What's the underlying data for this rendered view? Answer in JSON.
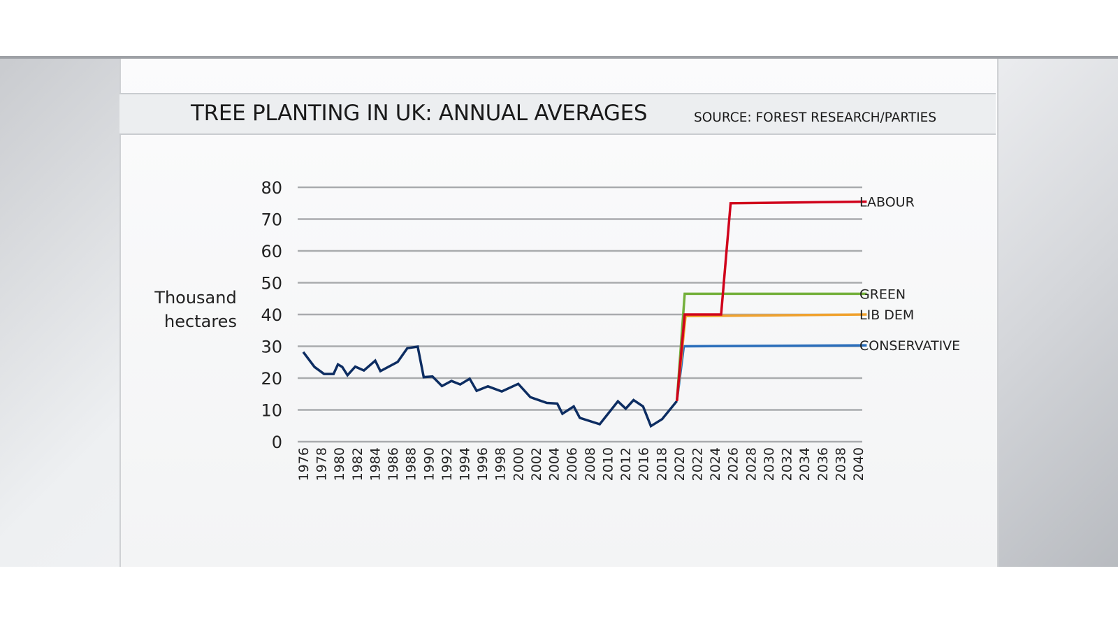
{
  "header": {
    "title": "TREE PLANTING IN UK: ANNUAL AVERAGES",
    "source": "SOURCE: FOREST RESEARCH/PARTIES"
  },
  "chart_data": {
    "type": "line",
    "title": "TREE PLANTING IN UK: ANNUAL AVERAGES",
    "ylabel_lines": [
      "Thousand",
      "hectares"
    ],
    "ylim": [
      0,
      80
    ],
    "yticks": [
      "0",
      "10",
      "20",
      "30",
      "40",
      "50",
      "60",
      "70",
      "80"
    ],
    "xlim": [
      1976,
      2040
    ],
    "xticks": [
      "1976",
      "1978",
      "1980",
      "1982",
      "1984",
      "1986",
      "1988",
      "1990",
      "1992",
      "1994",
      "1996",
      "1998",
      "2000",
      "2002",
      "2004",
      "2006",
      "2008",
      "2010",
      "2012",
      "2016",
      "2018",
      "2020",
      "2022",
      "2024",
      "2026",
      "2028",
      "2030",
      "2032",
      "2034",
      "2036",
      "2038",
      "2040"
    ],
    "grid": true,
    "series": [
      {
        "key": "historical",
        "color": "#0d2d62",
        "x": [
          1976.0,
          1977.3,
          1978.4,
          1979.5,
          1980.0,
          1980.5,
          1981.1,
          1982.0,
          1983.0,
          1984.3,
          1984.9,
          1986.9,
          1988.0,
          1989.2,
          1989.9,
          1990.9,
          1992.0,
          1993.1,
          1994.1,
          1995.2,
          1996.0,
          1997.3,
          1998.9,
          2000.8,
          2002.2,
          2004.1,
          2005.3,
          2005.9,
          2007.2,
          2007.9,
          2010.2,
          2012.3,
          2013.2,
          2014.1,
          2015.2,
          2016.1,
          2017.4,
          2019.1
        ],
        "y": [
          28.2,
          23.5,
          21.3,
          21.3,
          24.3,
          23.5,
          20.9,
          23.6,
          22.4,
          25.5,
          22.2,
          25.1,
          29.4,
          29.9,
          20.3,
          20.5,
          17.5,
          19.1,
          18.0,
          19.8,
          16.0,
          17.4,
          15.8,
          18.2,
          14.0,
          12.2,
          12.0,
          8.8,
          11.1,
          7.5,
          5.5,
          12.7,
          10.4,
          13.1,
          11.1,
          4.9,
          7.1,
          12.8
        ]
      },
      {
        "key": "labour",
        "name": "LABOUR",
        "color": "#d0021b",
        "x": [
          2019.1,
          2020.0,
          2024.2,
          2025.3,
          2041.0
        ],
        "y": [
          12.8,
          40.0,
          40.0,
          75.0,
          75.5
        ]
      },
      {
        "key": "green",
        "name": "GREEN",
        "color": "#74b03c",
        "x": [
          2019.1,
          2020.0,
          2041.0
        ],
        "y": [
          12.8,
          46.5,
          46.5
        ]
      },
      {
        "key": "libdem",
        "name": "LIB DEM",
        "color": "#f0a22e",
        "x": [
          2019.1,
          2020.1,
          2041.0
        ],
        "y": [
          12.8,
          39.5,
          40.0
        ]
      },
      {
        "key": "conservative",
        "name": "CONSERVATIVE",
        "color": "#2a6ebb",
        "x": [
          2019.1,
          2019.9,
          2041.0
        ],
        "y": [
          12.8,
          30.0,
          30.3
        ]
      }
    ]
  }
}
